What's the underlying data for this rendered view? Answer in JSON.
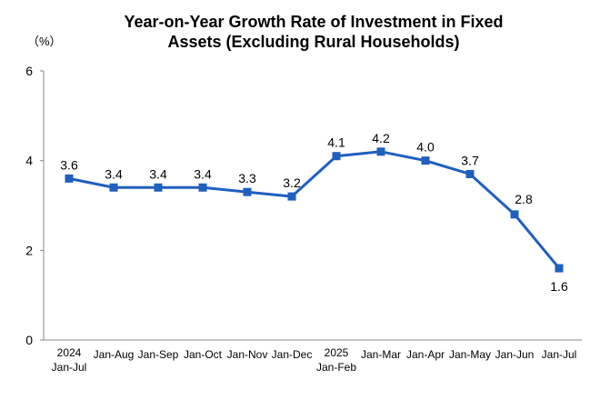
{
  "chart_data": {
    "type": "line",
    "title_lines": [
      "Year-on-Year Growth Rate of Investment in Fixed",
      "Assets (Excluding Rural Households)"
    ],
    "unit_label": "（%）",
    "y_ticks": [
      "0",
      "2",
      "4",
      "6"
    ],
    "ylim": [
      0,
      6
    ],
    "grid": false,
    "legend": "none",
    "categories": [
      [
        "2024",
        "Jan-Jul"
      ],
      [
        "Jan-Aug"
      ],
      [
        "Jan-Sep"
      ],
      [
        "Jan-Oct"
      ],
      [
        "Jan-Nov"
      ],
      [
        "Jan-Dec"
      ],
      [
        "2025",
        "Jan-Feb"
      ],
      [
        "Jan-Mar"
      ],
      [
        "Jan-Apr"
      ],
      [
        "Jan-May"
      ],
      [
        "Jan-Jun"
      ],
      [
        "Jan-Jul"
      ]
    ],
    "values": [
      3.6,
      3.4,
      3.4,
      3.4,
      3.3,
      3.2,
      4.1,
      4.2,
      4.0,
      3.7,
      2.8,
      1.6
    ],
    "data_labels": [
      "3.6",
      "3.4",
      "3.4",
      "3.4",
      "3.3",
      "3.2",
      "4.1",
      "4.2",
      "4.0",
      "3.7",
      "2.8",
      "1.6"
    ],
    "line_color": "#1f5fbf",
    "marker_color": "#1f5fbf",
    "axis_color": "#888888"
  }
}
